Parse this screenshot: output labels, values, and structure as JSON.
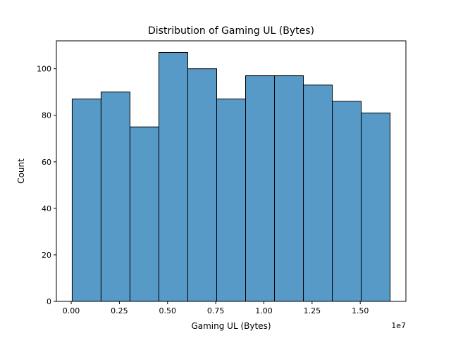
{
  "chart_data": {
    "type": "bar",
    "title": "Distribution of Gaming UL (Bytes)",
    "xlabel": "Gaming UL (Bytes)",
    "ylabel": "Count",
    "x_offset_label": "1e7",
    "bin_edges": [
      0.005,
      0.155,
      0.305,
      0.455,
      0.605,
      0.755,
      0.905,
      1.055,
      1.205,
      1.355,
      1.505,
      1.655
    ],
    "values": [
      87,
      90,
      75,
      107,
      100,
      87,
      97,
      97,
      93,
      86,
      81
    ],
    "xlim": [
      -0.077,
      1.737
    ],
    "ylim": [
      0,
      112
    ],
    "x_ticks": [
      0.0,
      0.25,
      0.5,
      0.75,
      1.0,
      1.25,
      1.5
    ],
    "x_tick_labels": [
      "0.00",
      "0.25",
      "0.50",
      "0.75",
      "1.00",
      "1.25",
      "1.50"
    ],
    "y_ticks": [
      0,
      20,
      40,
      60,
      80,
      100
    ],
    "y_tick_labels": [
      "0",
      "20",
      "40",
      "60",
      "80",
      "100"
    ],
    "bar_color": "#5799c7",
    "grid": false,
    "legend": "none"
  }
}
